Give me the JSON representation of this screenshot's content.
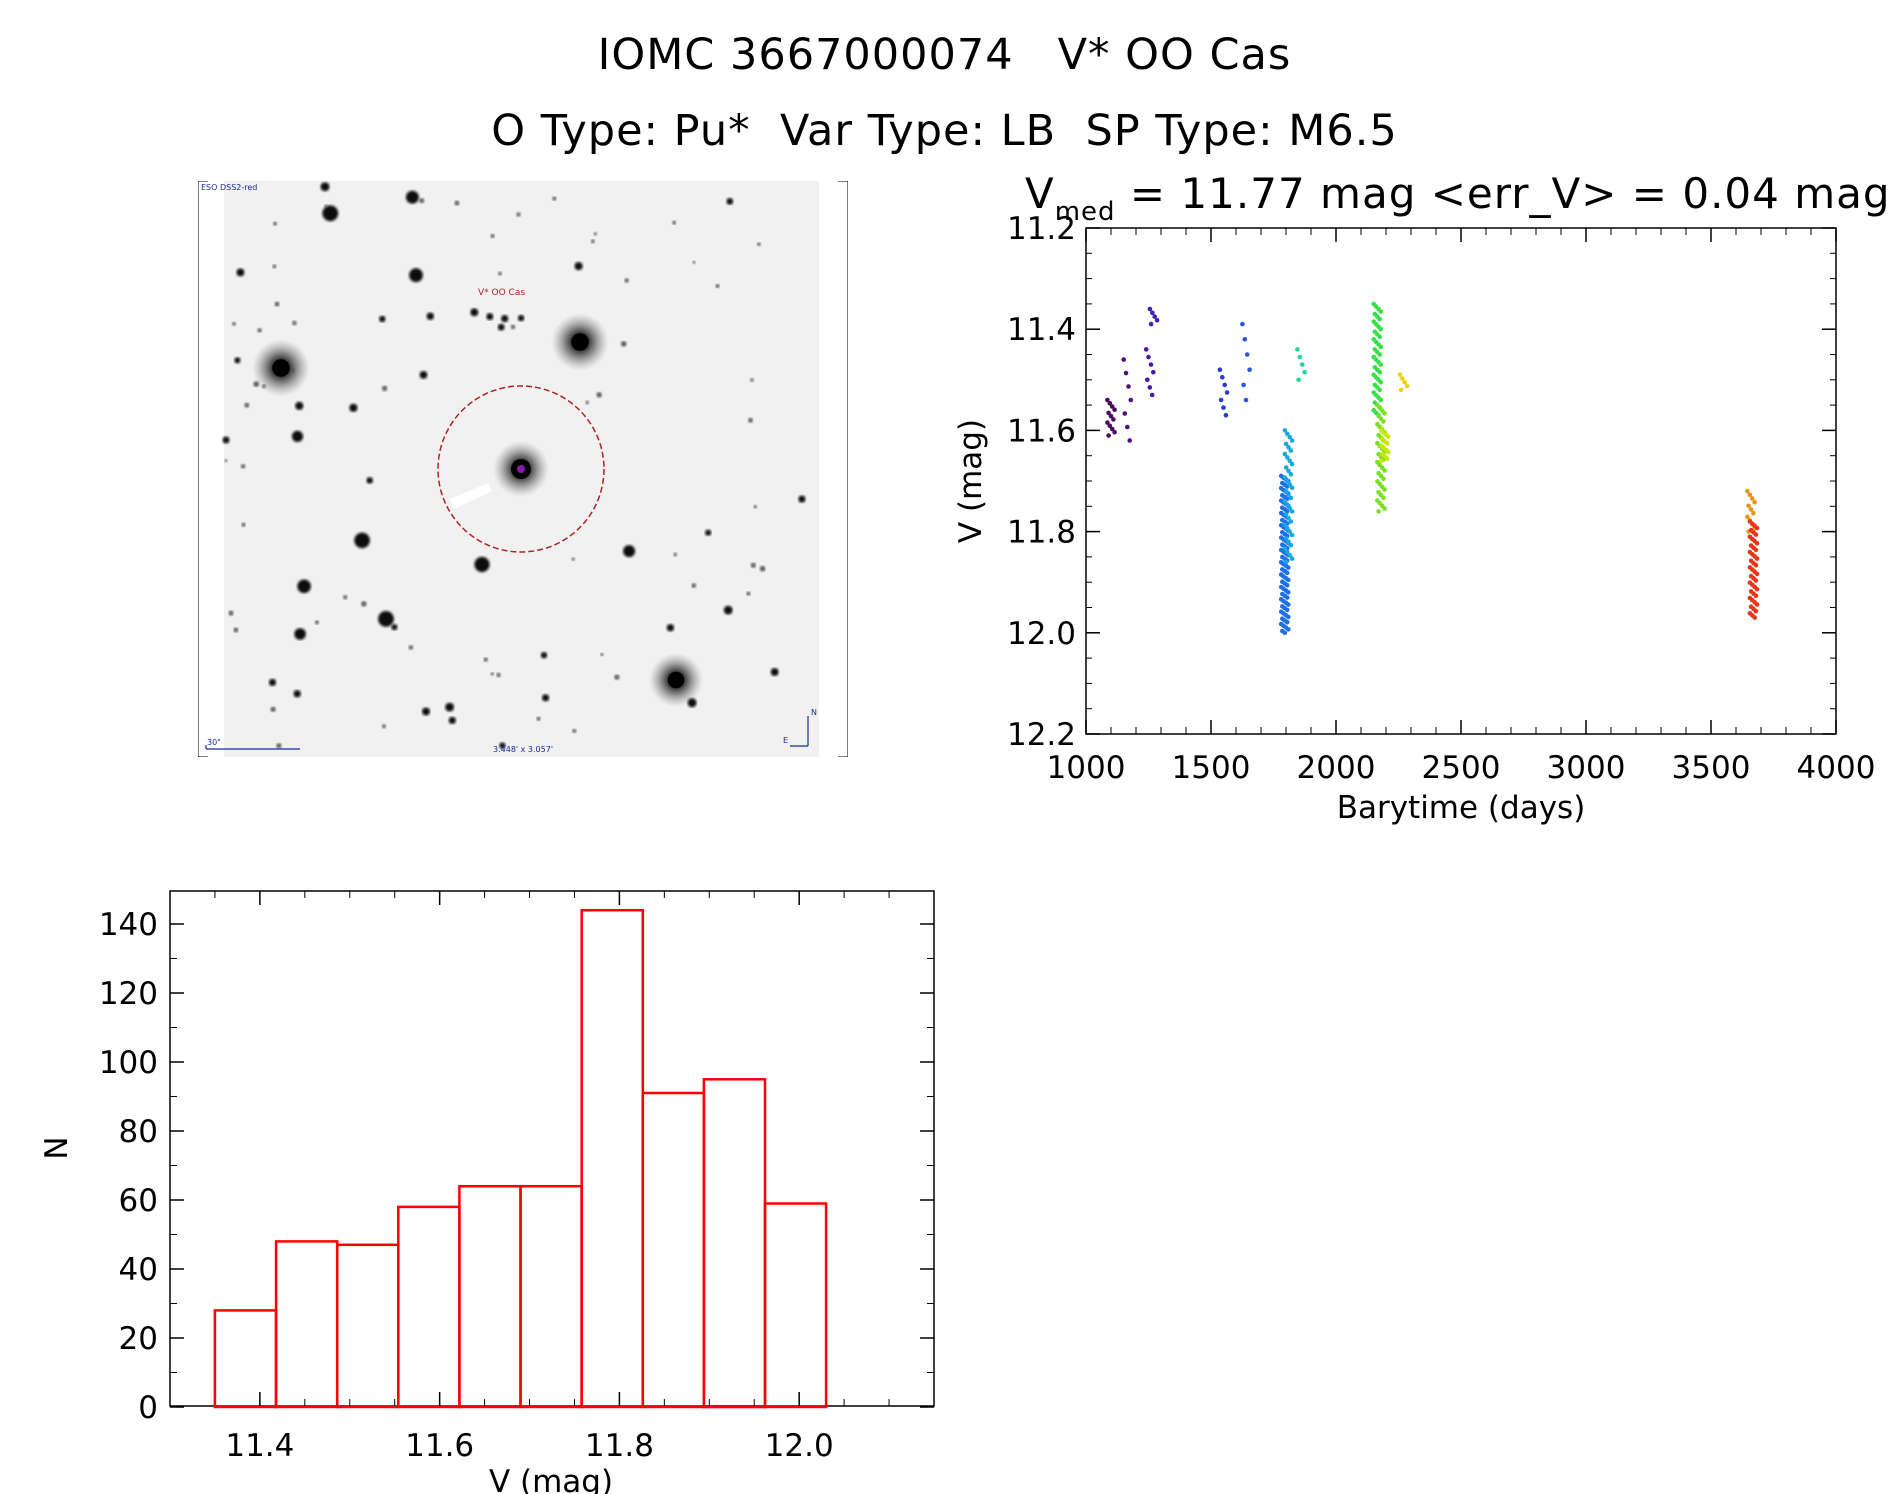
{
  "header": {
    "line1": "IOMC 3667000074   V* OO Cas",
    "line2": "O Type: Pu*  Var Type: LB  SP Type: M6.5"
  },
  "image_panel": {
    "survey_label": "ESO DSS2-red",
    "target_label": "V* OO Cas",
    "scale_label": "30\"",
    "fov_label": "3.448' x 3.057'",
    "north_label": "N",
    "east_label": "E"
  },
  "lightcurve": {
    "subtitle_main": "V",
    "subtitle_sub": "med",
    "subtitle_rest": " = 11.77 mag <err_V> = 0.04 mag"
  },
  "chart_data": [
    {
      "type": "scatter",
      "title": "V_med = 11.77 mag <err_V> = 0.04 mag",
      "xlabel": "Barytime (days)",
      "ylabel": "V (mag)",
      "xlim": [
        1000,
        4000
      ],
      "ylim": [
        12.2,
        11.2
      ],
      "y_inverted": true,
      "xticks": [
        "1000",
        "1500",
        "2000",
        "2500",
        "3000",
        "3500",
        "4000"
      ],
      "yticks": [
        "11.2",
        "11.4",
        "11.6",
        "11.8",
        "12.0",
        "12.2"
      ],
      "groups": [
        {
          "x": 1100,
          "y_min": 11.54,
          "y_max": 11.61,
          "n": 12,
          "color": "#4a0a5e"
        },
        {
          "x": 1165,
          "y_min": 11.46,
          "y_max": 11.62,
          "n": 7,
          "color": "#4d0f7a"
        },
        {
          "x": 1255,
          "y_min": 11.44,
          "y_max": 11.53,
          "n": 7,
          "color": "#4b1aa0"
        },
        {
          "x": 1270,
          "y_min": 11.36,
          "y_max": 11.39,
          "n": 5,
          "color": "#3f22b0"
        },
        {
          "x": 1550,
          "y_min": 11.48,
          "y_max": 11.57,
          "n": 7,
          "color": "#2a3ad6"
        },
        {
          "x": 1640,
          "y_min": 11.39,
          "y_max": 11.54,
          "n": 6,
          "color": "#2a55e0"
        },
        {
          "x": 1795,
          "y_min": 11.69,
          "y_max": 12.0,
          "n": 90,
          "color": "#1e6fe8"
        },
        {
          "x": 1810,
          "y_min": 11.6,
          "y_max": 11.86,
          "n": 40,
          "color": "#1aa8e0"
        },
        {
          "x": 1860,
          "y_min": 11.44,
          "y_max": 11.5,
          "n": 5,
          "color": "#22d6a0"
        },
        {
          "x": 2165,
          "y_min": 11.35,
          "y_max": 11.57,
          "n": 45,
          "color": "#3ae04a"
        },
        {
          "x": 2180,
          "y_min": 11.55,
          "y_max": 11.76,
          "n": 40,
          "color": "#7ae025"
        },
        {
          "x": 2195,
          "y_min": 11.6,
          "y_max": 11.66,
          "n": 15,
          "color": "#c8e800"
        },
        {
          "x": 2270,
          "y_min": 11.49,
          "y_max": 11.52,
          "n": 5,
          "color": "#f0d010"
        },
        {
          "x": 3660,
          "y_min": 11.72,
          "y_max": 11.8,
          "n": 12,
          "color": "#f09018"
        },
        {
          "x": 3670,
          "y_min": 11.78,
          "y_max": 11.97,
          "n": 45,
          "color": "#e8361a"
        }
      ]
    },
    {
      "type": "bar",
      "title": "",
      "xlabel": "V (mag)",
      "ylabel": "N",
      "xlim": [
        11.3,
        12.15
      ],
      "ylim": [
        0,
        150
      ],
      "xticks": [
        "11.4",
        "11.6",
        "11.8",
        "12.0"
      ],
      "yticks": [
        "0",
        "20",
        "40",
        "60",
        "80",
        "100",
        "120",
        "140"
      ],
      "bin_edges": [
        11.35,
        11.418,
        11.486,
        11.554,
        11.622,
        11.69,
        11.758,
        11.826,
        11.894,
        11.962,
        12.03
      ],
      "values": [
        28,
        48,
        47,
        58,
        64,
        64,
        144,
        91,
        95,
        59
      ],
      "color": "#ff0000"
    }
  ]
}
